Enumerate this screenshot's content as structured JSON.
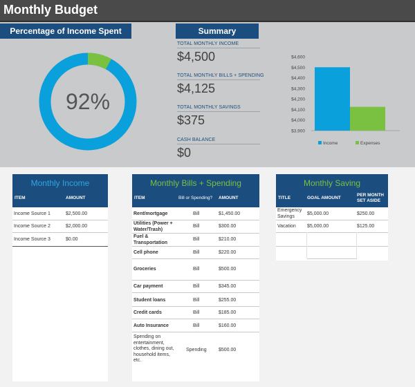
{
  "page": {
    "title": "Monthly Budget"
  },
  "percentage_panel": {
    "header": "Percentage of Income Spent",
    "percent_label": "92%",
    "percent_value": 92
  },
  "summary": {
    "header": "Summary",
    "items": [
      {
        "label": "TOTAL MONTHLY INCOME",
        "value": "$4,500"
      },
      {
        "label": "TOTAL MONTHLY BILLS + SPENDING",
        "value": "$4,125"
      },
      {
        "label": "TOTAL MONTHLY SAVINGS",
        "value": "$375"
      },
      {
        "label": "CASH BALANCE",
        "value": "$0"
      }
    ]
  },
  "chart_data": {
    "type": "bar",
    "categories": [
      "Income",
      "Expenses"
    ],
    "values": [
      4500,
      4125
    ],
    "colors": [
      "#0aa0dc",
      "#7ac142"
    ],
    "y_tick_labels": [
      "$3,900",
      "$4,000",
      "$4,100",
      "$4,200",
      "$4,300",
      "$4,400",
      "$4,500",
      "$4,600"
    ],
    "ylim": [
      3900,
      4600
    ],
    "legend": [
      "Income",
      "Expenses"
    ],
    "legend_position": "bottom"
  },
  "income_table": {
    "title": "Monthly Income",
    "title_color": "#2ea7e0",
    "columns": [
      "ITEM",
      "AMOUNT"
    ],
    "rows": [
      [
        "Income Source 1",
        "$2,500.00"
      ],
      [
        "Income Source 2",
        "$2,000.00"
      ],
      [
        "Income Source 3",
        "$0.00"
      ]
    ]
  },
  "bills_table": {
    "title": "Monthly Bills + Spending",
    "title_color": "#7ac142",
    "columns": [
      "ITEM",
      "Bill or Spending?",
      "AMOUNT"
    ],
    "rows": [
      [
        "Rent/mortgage",
        "Bill",
        "$1,450.00"
      ],
      [
        "Utilities (Power + Water/Trash)",
        "Bill",
        "$300.00"
      ],
      [
        "Fuel & Transportation",
        "Bill",
        "$210.00"
      ],
      [
        "Cell phone",
        "Bill",
        "$220.00"
      ],
      [
        "Groceries",
        "Bill",
        "$500.00"
      ],
      [
        "Car payment",
        "Bill",
        "$345.00"
      ],
      [
        "Student loans",
        "Bill",
        "$255.00"
      ],
      [
        "Credit cards",
        "Bill",
        "$185.00"
      ],
      [
        "Auto Insurance",
        "Bill",
        "$160.00"
      ],
      [
        "Spending on entertainment, clothes, dining out, household items, etc.",
        "Spending",
        "$500.00"
      ]
    ]
  },
  "saving_table": {
    "title": "Monthly Saving",
    "title_color": "#7ac142",
    "columns": [
      "TITLE",
      "GOAL AMOUNT",
      "PER MONTH SET ASIDE"
    ],
    "rows": [
      [
        "Emergency Savings",
        "$5,000.00",
        "$250.00"
      ],
      [
        "Vacation",
        "$5,000.00",
        "$125.00"
      ]
    ]
  }
}
